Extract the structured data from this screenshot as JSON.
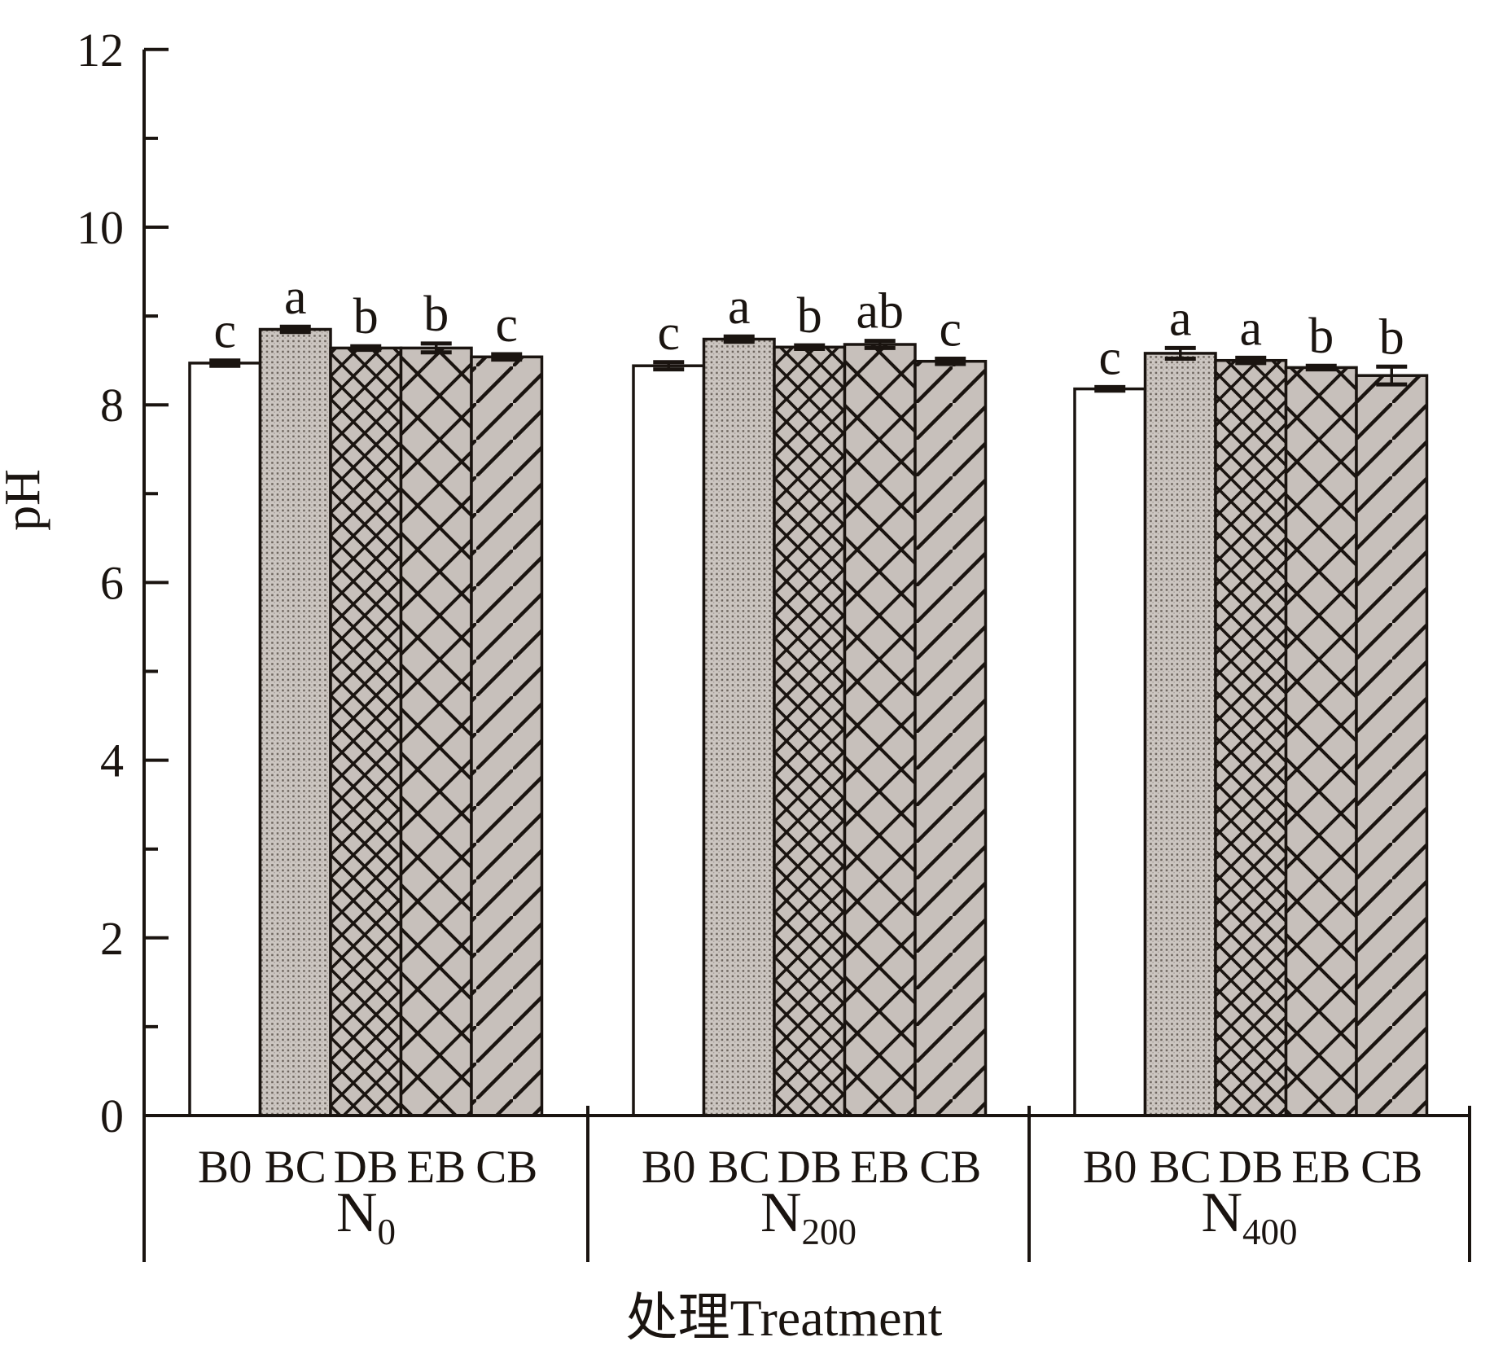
{
  "figure": {
    "background": "#ffffff",
    "description": "Grouped bar chart of soil pH for five biochar treatments under three nitrogen levels, with error bars and significance letters"
  },
  "chart_data": {
    "type": "bar",
    "title": "",
    "xlabel": "处理Treatment",
    "ylabel": "pH",
    "ylim": [
      0,
      12
    ],
    "yticks_major": [
      0,
      2,
      4,
      6,
      8,
      10,
      12
    ],
    "yticks_minor": [
      1,
      3,
      5,
      7,
      9,
      11
    ],
    "categories": [
      "B0",
      "BC",
      "DB",
      "EB",
      "CB"
    ],
    "bar_patterns": [
      "white-plain",
      "gray-dot-stipple",
      "dense-crosshatch",
      "wide-crosshatch",
      "diagonal-hatch"
    ],
    "grid": false,
    "legend": "none",
    "groups": [
      {
        "label": "N",
        "subscript": "0",
        "values": [
          8.47,
          8.85,
          8.64,
          8.64,
          8.54
        ],
        "errors": [
          0.03,
          0.03,
          0.02,
          0.05,
          0.03
        ],
        "sig_letters": [
          "c",
          "a",
          "b",
          "b",
          "c"
        ]
      },
      {
        "label": "N",
        "subscript": "200",
        "values": [
          8.44,
          8.74,
          8.65,
          8.68,
          8.49
        ],
        "errors": [
          0.04,
          0.03,
          0.02,
          0.04,
          0.03
        ],
        "sig_letters": [
          "c",
          "a",
          "b",
          "ab",
          "c"
        ]
      },
      {
        "label": "N",
        "subscript": "400",
        "values": [
          8.18,
          8.58,
          8.5,
          8.42,
          8.33
        ],
        "errors": [
          0.02,
          0.06,
          0.03,
          0.02,
          0.1
        ],
        "sig_letters": [
          "c",
          "a",
          "a",
          "b",
          "b"
        ]
      }
    ],
    "colors": {
      "bar_fill": "#c7c0bb",
      "stipple_fill": "#ccc6c1",
      "stroke": "#1a1410",
      "background": "#ffffff"
    }
  }
}
